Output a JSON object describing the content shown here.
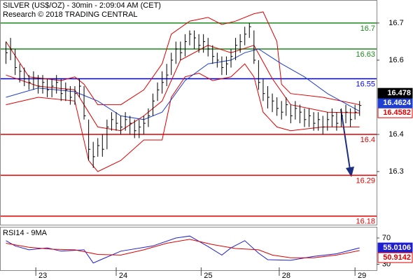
{
  "chart_data": [
    {
      "type": "hlc",
      "title": "SILVER (US$/OZ) - 30min - 2:09:04 AM (CET)",
      "subtitle": "Research © 2018 TRADING CENTRAL",
      "ylim": [
        16.155,
        16.762
      ],
      "yticks": [
        16.3,
        16.4,
        16.6,
        16.7
      ],
      "bar_color": "#000000",
      "high": [
        16.65,
        16.66,
        16.63,
        16.59,
        16.58,
        16.56,
        16.57,
        16.56,
        16.56,
        16.55,
        16.55,
        16.56,
        16.55,
        16.54,
        16.53,
        16.53,
        16.55,
        16.53,
        16.44,
        16.38,
        16.39,
        16.4,
        16.44,
        16.46,
        16.46,
        16.45,
        16.46,
        16.45,
        16.44,
        16.44,
        16.45,
        16.47,
        16.51,
        16.54,
        16.57,
        16.59,
        16.62,
        16.65,
        16.65,
        16.67,
        16.68,
        16.68,
        16.67,
        16.67,
        16.66,
        16.64,
        16.62,
        16.61,
        16.61,
        16.63,
        16.66,
        16.67,
        16.69,
        16.7,
        16.68,
        16.6,
        16.55,
        16.53,
        16.51,
        16.5,
        16.49,
        16.5,
        16.48,
        16.49,
        16.48,
        16.47,
        16.47,
        16.46,
        16.46,
        16.45,
        16.46,
        16.47,
        16.46,
        16.47,
        16.48,
        16.47,
        16.48,
        16.49
      ],
      "low": [
        16.59,
        16.6,
        16.56,
        16.54,
        16.53,
        16.52,
        16.52,
        16.51,
        16.51,
        16.5,
        16.5,
        16.51,
        16.49,
        16.49,
        16.48,
        16.48,
        16.5,
        16.44,
        16.33,
        16.31,
        16.34,
        16.34,
        16.36,
        16.41,
        16.41,
        16.4,
        16.41,
        16.4,
        16.39,
        16.39,
        16.4,
        16.42,
        16.45,
        16.49,
        16.51,
        16.53,
        16.56,
        16.59,
        16.6,
        16.61,
        16.64,
        16.63,
        16.62,
        16.62,
        16.61,
        16.59,
        16.58,
        16.56,
        16.56,
        16.58,
        16.6,
        16.62,
        16.64,
        16.66,
        16.59,
        16.52,
        16.49,
        16.47,
        16.46,
        16.45,
        16.44,
        16.45,
        16.43,
        16.44,
        16.43,
        16.42,
        16.42,
        16.41,
        16.41,
        16.4,
        16.41,
        16.42,
        16.41,
        16.42,
        16.43,
        16.42,
        16.44,
        16.45
      ],
      "close": [
        16.62,
        16.63,
        16.58,
        16.57,
        16.55,
        16.54,
        16.55,
        16.53,
        16.54,
        16.52,
        16.53,
        16.54,
        16.51,
        16.52,
        16.5,
        16.51,
        16.53,
        16.45,
        16.36,
        16.34,
        16.37,
        16.36,
        16.42,
        16.44,
        16.43,
        16.42,
        16.44,
        16.43,
        16.41,
        16.42,
        16.43,
        16.45,
        16.49,
        16.52,
        16.54,
        16.56,
        16.6,
        16.63,
        16.62,
        16.65,
        16.67,
        16.66,
        16.64,
        16.65,
        16.63,
        16.61,
        16.6,
        16.58,
        16.59,
        16.61,
        16.64,
        16.65,
        16.67,
        16.69,
        16.6,
        16.54,
        16.51,
        16.5,
        16.49,
        16.47,
        16.46,
        16.48,
        16.45,
        16.47,
        16.46,
        16.44,
        16.45,
        16.43,
        16.44,
        16.42,
        16.44,
        16.45,
        16.43,
        16.45,
        16.46,
        16.44,
        16.46,
        16.478
      ],
      "lines": [
        {
          "color": "#e00000",
          "x": [
            0,
            5,
            12,
            15,
            17,
            20,
            25,
            30,
            34,
            36,
            40,
            44,
            47,
            50,
            54,
            56,
            59,
            60,
            62,
            69,
            77
          ],
          "values": [
            16.65,
            16.555,
            16.545,
            16.555,
            16.535,
            16.48,
            16.48,
            16.52,
            16.59,
            16.67,
            16.705,
            16.715,
            16.696,
            16.705,
            16.725,
            16.73,
            16.65,
            16.535,
            16.51,
            16.5,
            16.48
          ]
        },
        {
          "color": "#e00000",
          "x": [
            0,
            7,
            15,
            18,
            20,
            25,
            30,
            34,
            36,
            39,
            42,
            45,
            49,
            52,
            54,
            56,
            59,
            62,
            69,
            77
          ],
          "values": [
            16.48,
            16.5,
            16.49,
            16.33,
            16.3,
            16.33,
            16.385,
            16.385,
            16.5,
            16.555,
            16.565,
            16.545,
            16.555,
            16.59,
            16.555,
            16.46,
            16.42,
            16.41,
            16.42,
            16.42
          ]
        },
        {
          "color": "#e00000",
          "x": [
            0,
            7,
            15,
            20,
            25,
            30,
            34,
            38,
            44,
            49,
            54,
            58,
            62,
            70,
            77
          ],
          "values": [
            16.56,
            16.53,
            16.52,
            16.42,
            16.41,
            16.45,
            16.49,
            16.6,
            16.64,
            16.62,
            16.64,
            16.55,
            16.48,
            16.46,
            16.4582
          ]
        },
        {
          "color": "#1f3fd0",
          "x": [
            0,
            7,
            15,
            20,
            25,
            30,
            34,
            39,
            44,
            49,
            52,
            55,
            60,
            65,
            70,
            77
          ],
          "values": [
            16.5,
            16.525,
            16.515,
            16.49,
            16.45,
            16.44,
            16.46,
            16.545,
            16.59,
            16.6,
            16.62,
            16.63,
            16.59,
            16.555,
            16.51,
            16.4624
          ]
        }
      ],
      "levels": [
        {
          "value": 16.7,
          "color": "#1a8a1a"
        },
        {
          "value": 16.63,
          "color": "#1a8a1a"
        },
        {
          "value": 16.55,
          "color": "#0000e0"
        },
        {
          "value": 16.4,
          "color": "#e00000"
        },
        {
          "value": 16.29,
          "color": "#e00000"
        },
        {
          "value": 16.18,
          "color": "#e00000"
        }
      ]
    },
    {
      "type": "line",
      "title": "RSI14 - 9MA",
      "ylim": [
        21,
        86
      ],
      "yticks": [
        70,
        30
      ],
      "xlim": [
        -1.3,
        80.7
      ],
      "xticks": [
        {
          "value": 6.5,
          "label": "23"
        },
        {
          "value": 24,
          "label": "24"
        },
        {
          "value": 42.5,
          "label": "25"
        },
        {
          "value": 59.5,
          "label": "28"
        },
        {
          "value": 76,
          "label": "29"
        }
      ],
      "series": [
        {
          "color": "#1f1fd0",
          "x": [
            0,
            2,
            5,
            9,
            12,
            17,
            19,
            21,
            25,
            32,
            37,
            40,
            44,
            47,
            49,
            52,
            55,
            57,
            62,
            67,
            72,
            77
          ],
          "values": [
            66,
            58,
            52,
            55,
            50,
            52,
            32,
            38,
            50,
            58,
            70,
            73,
            57,
            44,
            55,
            66,
            47,
            37,
            36,
            42,
            46,
            55.0106
          ]
        },
        {
          "color": "#e00000",
          "x": [
            0,
            5,
            10,
            15,
            20,
            25,
            30,
            35,
            40,
            45,
            50,
            55,
            58,
            62,
            67,
            72,
            77
          ],
          "values": [
            62,
            56,
            53,
            52,
            45,
            44,
            52,
            62,
            68,
            60,
            54,
            52,
            44,
            40,
            40,
            44,
            50.9142
          ]
        }
      ]
    }
  ]
}
